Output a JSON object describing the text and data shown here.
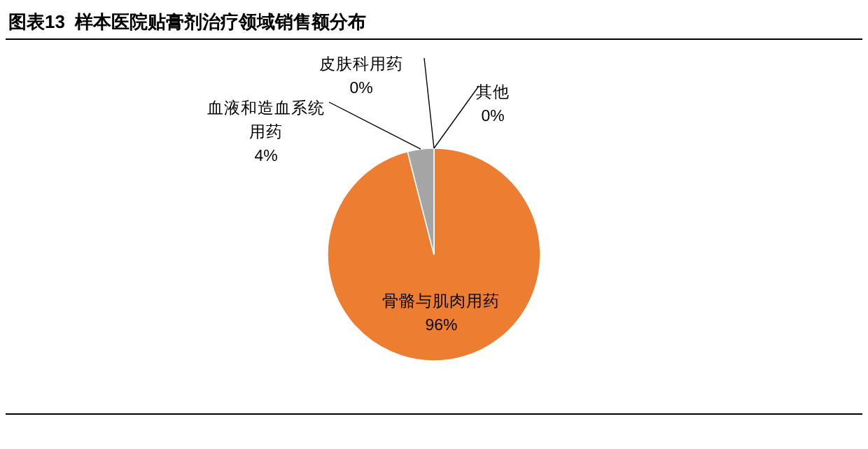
{
  "chart_data": {
    "type": "pie",
    "title": "图表13  样本医院贴膏剂治疗领域销售额分布",
    "categories": [
      "骨骼与肌肉用药",
      "血液和造血系统用药",
      "皮肤科用药",
      "其他"
    ],
    "values": [
      96,
      4,
      0,
      0
    ],
    "colors": [
      "#ed7d31",
      "#a5a5a5",
      "#ffc000",
      "#5b9bd5"
    ],
    "value_labels": [
      "96%",
      "4%",
      "0%",
      "0%"
    ]
  }
}
